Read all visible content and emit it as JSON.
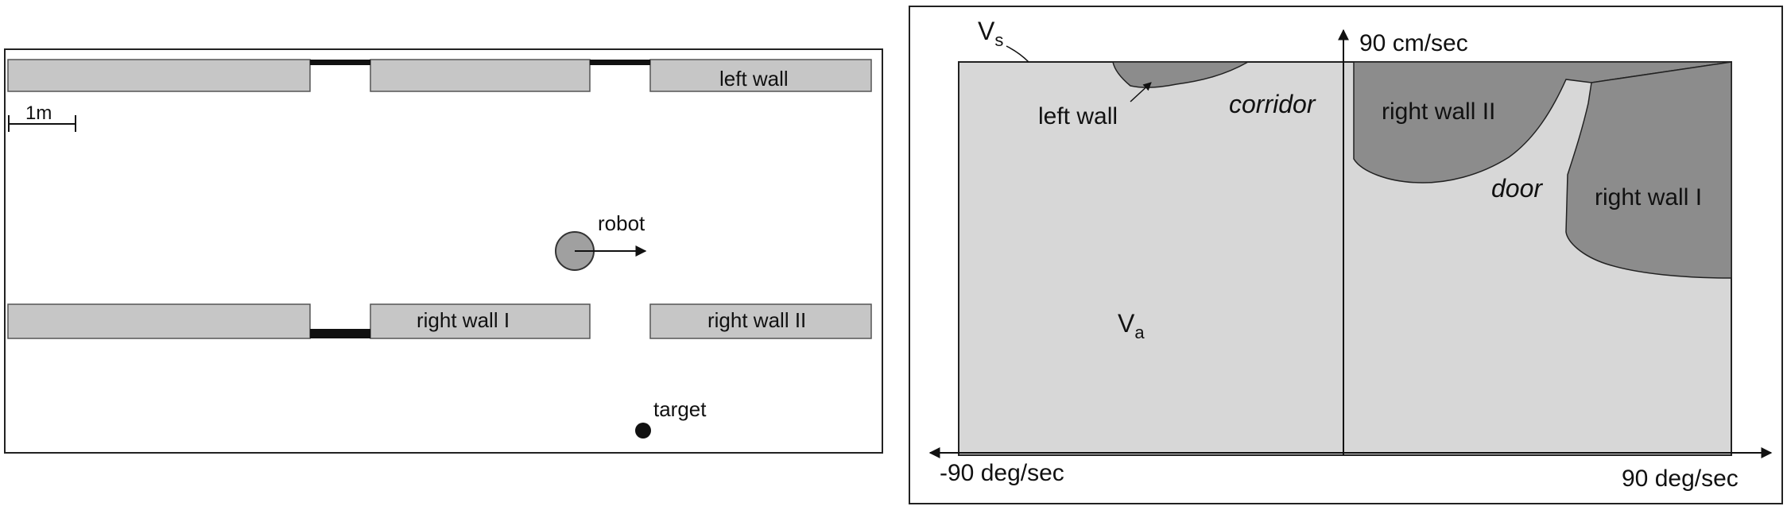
{
  "left_panel": {
    "scale_label": "1m",
    "walls": {
      "left_wall": "left wall",
      "right_wall_1": "right wall I",
      "right_wall_2": "right wall II"
    },
    "robot_label": "robot",
    "target_label": "target"
  },
  "right_panel": {
    "vs_label": "V",
    "vs_subscript": "s",
    "va_label": "V",
    "va_subscript": "a",
    "region_labels": {
      "left_wall": "left wall",
      "corridor": "corridor",
      "right_wall_2": "right wall II",
      "door": "door",
      "right_wall_1": "right wall I"
    },
    "y_axis_label": "90 cm/sec",
    "x_axis_min_label": "-90 deg/sec",
    "x_axis_max_label": "90 deg/sec"
  },
  "colors": {
    "wall_fill": "#c6c6c6",
    "window_fill": "#dcdcdc",
    "obstacle_fill": "#8c8c8c",
    "ink": "#111111"
  }
}
